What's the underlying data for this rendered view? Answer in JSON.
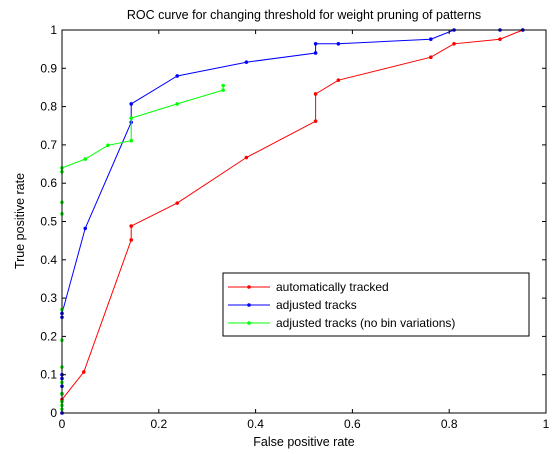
{
  "chart_data": {
    "type": "line",
    "title": "ROC curve for changing threshold for weight pruning of patterns",
    "xlabel": "False positive rate",
    "ylabel": "True positive rate",
    "xlim": [
      0,
      1
    ],
    "ylim": [
      0,
      1
    ],
    "xticks": [
      "0",
      "0.2",
      "0.4",
      "0.6",
      "0.8",
      "1"
    ],
    "yticks": [
      "0",
      "0.1",
      "0.2",
      "0.3",
      "0.4",
      "0.5",
      "0.6",
      "0.7",
      "0.8",
      "0.9",
      "1"
    ],
    "grid": false,
    "legend_position": "bottom-right",
    "series": [
      {
        "name": "automatically tracked",
        "color": "#ff0000",
        "points": [
          [
            0,
            0
          ],
          [
            0,
            0.03
          ],
          [
            0,
            0.035
          ],
          [
            0.045,
            0.107
          ],
          [
            0.143,
            0.452
          ],
          [
            0.143,
            0.488
          ],
          [
            0.238,
            0.548
          ],
          [
            0.381,
            0.667
          ],
          [
            0.524,
            0.762
          ],
          [
            0.524,
            0.833
          ],
          [
            0.571,
            0.869
          ],
          [
            0.762,
            0.929
          ],
          [
            0.81,
            0.964
          ],
          [
            0.905,
            0.976
          ],
          [
            0.952,
            1.0
          ]
        ]
      },
      {
        "name": "adjusted tracks",
        "color": "#0000ff",
        "points": [
          [
            0,
            0
          ],
          [
            0,
            0.05
          ],
          [
            0,
            0.07
          ],
          [
            0,
            0.09
          ],
          [
            0,
            0.1
          ],
          [
            0,
            0.25
          ],
          [
            0,
            0.26
          ],
          [
            0.048,
            0.482
          ],
          [
            0.143,
            0.759
          ],
          [
            0.143,
            0.807
          ],
          [
            0.238,
            0.88
          ],
          [
            0.381,
            0.916
          ],
          [
            0.524,
            0.94
          ],
          [
            0.524,
            0.964
          ],
          [
            0.571,
            0.964
          ],
          [
            0.762,
            0.976
          ],
          [
            0.81,
            1.0
          ],
          [
            0.905,
            1.0
          ],
          [
            0.952,
            1.0
          ]
        ]
      },
      {
        "name": "adjusted tracks (no bin variations)",
        "color": "#00ff00",
        "points": [
          [
            0,
            0.01
          ],
          [
            0,
            0.02
          ],
          [
            0,
            0.03
          ],
          [
            0,
            0.05
          ],
          [
            0,
            0.08
          ],
          [
            0,
            0.12
          ],
          [
            0,
            0.19
          ],
          [
            0,
            0.27
          ],
          [
            0,
            0.52
          ],
          [
            0,
            0.55
          ],
          [
            0,
            0.63
          ],
          [
            0,
            0.64
          ],
          [
            0.048,
            0.663
          ],
          [
            0.095,
            0.699
          ],
          [
            0.143,
            0.711
          ],
          [
            0.143,
            0.77
          ],
          [
            0.238,
            0.807
          ],
          [
            0.333,
            0.843
          ],
          [
            0.333,
            0.855
          ]
        ]
      }
    ]
  }
}
